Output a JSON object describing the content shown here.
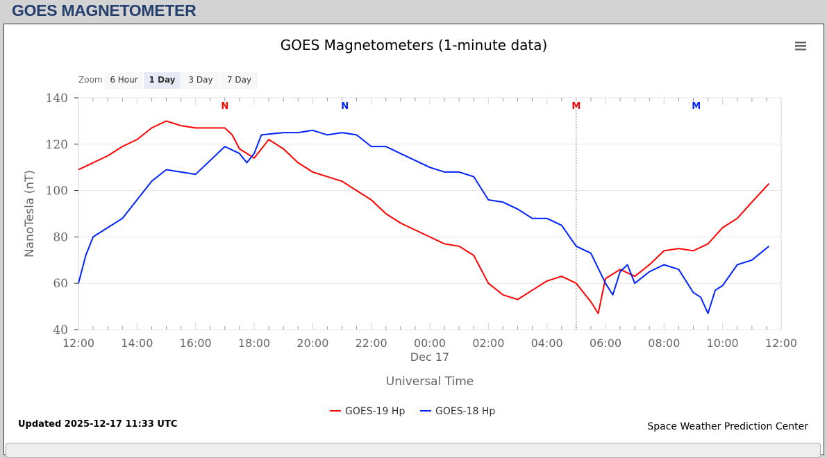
{
  "header": {
    "title": "GOES MAGNETOMETER"
  },
  "menu_icon": "hamburger-menu-icon",
  "zoom": {
    "label": "Zoom",
    "buttons": [
      "6 Hour",
      "1 Day",
      "3 Day",
      "7 Day"
    ],
    "selected": "1 Day"
  },
  "footer": {
    "updated": "Updated 2025-12-17 11:33 UTC",
    "credit": "Space Weather Prediction Center"
  },
  "chart_data": {
    "type": "line",
    "title": "GOES Magnetometers (1-minute data)",
    "xlabel": "Universal Time",
    "ylabel": "NanoTesla (nT)",
    "xlim": [
      "2025-12-16 12:00",
      "2025-12-17 12:00"
    ],
    "ylim": [
      40,
      140
    ],
    "yticks": [
      40,
      60,
      80,
      100,
      120,
      140
    ],
    "xticks": [
      "12:00",
      "14:00",
      "16:00",
      "18:00",
      "20:00",
      "22:00",
      "00:00",
      "02:00",
      "04:00",
      "06:00",
      "08:00",
      "10:00",
      "12:00"
    ],
    "date_label": "Dec 17",
    "grid": true,
    "legend_position": "bottom",
    "colors": {
      "GOES-19 Hp": "#ff0000",
      "GOES-18 Hp": "#0022ff"
    },
    "markers": [
      {
        "label": "N",
        "series": "GOES-19 Hp",
        "time": "2025-12-16 17:00"
      },
      {
        "label": "N",
        "series": "GOES-18 Hp",
        "time": "2025-12-16 21:06"
      },
      {
        "label": "M",
        "series": "GOES-19 Hp",
        "time": "2025-12-17 05:00",
        "line": true
      },
      {
        "label": "M",
        "series": "GOES-18 Hp",
        "time": "2025-12-17 09:06"
      }
    ],
    "series": [
      {
        "name": "GOES-19 Hp",
        "points": [
          [
            "2025-12-16 12:00",
            109
          ],
          [
            "2025-12-16 12:30",
            112
          ],
          [
            "2025-12-16 13:00",
            115
          ],
          [
            "2025-12-16 13:30",
            119
          ],
          [
            "2025-12-16 14:00",
            122
          ],
          [
            "2025-12-16 14:30",
            127
          ],
          [
            "2025-12-16 15:00",
            130
          ],
          [
            "2025-12-16 15:30",
            128
          ],
          [
            "2025-12-16 16:00",
            127
          ],
          [
            "2025-12-16 16:30",
            127
          ],
          [
            "2025-12-16 17:00",
            127
          ],
          [
            "2025-12-16 17:15",
            124
          ],
          [
            "2025-12-16 17:30",
            118
          ],
          [
            "2025-12-16 18:00",
            114
          ],
          [
            "2025-12-16 18:30",
            122
          ],
          [
            "2025-12-16 19:00",
            118
          ],
          [
            "2025-12-16 19:30",
            112
          ],
          [
            "2025-12-16 20:00",
            108
          ],
          [
            "2025-12-16 20:30",
            106
          ],
          [
            "2025-12-16 21:00",
            104
          ],
          [
            "2025-12-16 21:30",
            100
          ],
          [
            "2025-12-16 22:00",
            96
          ],
          [
            "2025-12-16 22:30",
            90
          ],
          [
            "2025-12-16 23:00",
            86
          ],
          [
            "2025-12-16 23:30",
            83
          ],
          [
            "2025-12-17 00:00",
            80
          ],
          [
            "2025-12-17 00:30",
            77
          ],
          [
            "2025-12-17 01:00",
            76
          ],
          [
            "2025-12-17 01:30",
            72
          ],
          [
            "2025-12-17 02:00",
            60
          ],
          [
            "2025-12-17 02:30",
            55
          ],
          [
            "2025-12-17 03:00",
            53
          ],
          [
            "2025-12-17 03:30",
            57
          ],
          [
            "2025-12-17 04:00",
            61
          ],
          [
            "2025-12-17 04:30",
            63
          ],
          [
            "2025-12-17 05:00",
            60
          ],
          [
            "2025-12-17 05:30",
            52
          ],
          [
            "2025-12-17 05:45",
            47
          ],
          [
            "2025-12-17 06:00",
            62
          ],
          [
            "2025-12-17 06:30",
            66
          ],
          [
            "2025-12-17 07:00",
            63
          ],
          [
            "2025-12-17 07:30",
            68
          ],
          [
            "2025-12-17 08:00",
            74
          ],
          [
            "2025-12-17 08:30",
            75
          ],
          [
            "2025-12-17 09:00",
            74
          ],
          [
            "2025-12-17 09:30",
            77
          ],
          [
            "2025-12-17 10:00",
            84
          ],
          [
            "2025-12-17 10:30",
            88
          ],
          [
            "2025-12-17 11:00",
            95
          ],
          [
            "2025-12-17 11:35",
            103
          ]
        ]
      },
      {
        "name": "GOES-18 Hp",
        "points": [
          [
            "2025-12-16 12:00",
            60
          ],
          [
            "2025-12-16 12:15",
            72
          ],
          [
            "2025-12-16 12:30",
            80
          ],
          [
            "2025-12-16 13:00",
            84
          ],
          [
            "2025-12-16 13:30",
            88
          ],
          [
            "2025-12-16 14:00",
            96
          ],
          [
            "2025-12-16 14:30",
            104
          ],
          [
            "2025-12-16 15:00",
            109
          ],
          [
            "2025-12-16 15:30",
            108
          ],
          [
            "2025-12-16 16:00",
            107
          ],
          [
            "2025-12-16 16:30",
            113
          ],
          [
            "2025-12-16 17:00",
            119
          ],
          [
            "2025-12-16 17:30",
            116
          ],
          [
            "2025-12-16 17:45",
            112
          ],
          [
            "2025-12-16 18:00",
            116
          ],
          [
            "2025-12-16 18:15",
            124
          ],
          [
            "2025-12-16 19:00",
            125
          ],
          [
            "2025-12-16 19:30",
            125
          ],
          [
            "2025-12-16 20:00",
            126
          ],
          [
            "2025-12-16 20:30",
            124
          ],
          [
            "2025-12-16 21:00",
            125
          ],
          [
            "2025-12-16 21:30",
            124
          ],
          [
            "2025-12-16 22:00",
            119
          ],
          [
            "2025-12-16 22:30",
            119
          ],
          [
            "2025-12-16 23:00",
            116
          ],
          [
            "2025-12-16 23:30",
            113
          ],
          [
            "2025-12-17 00:00",
            110
          ],
          [
            "2025-12-17 00:30",
            108
          ],
          [
            "2025-12-17 01:00",
            108
          ],
          [
            "2025-12-17 01:30",
            106
          ],
          [
            "2025-12-17 02:00",
            96
          ],
          [
            "2025-12-17 02:30",
            95
          ],
          [
            "2025-12-17 03:00",
            92
          ],
          [
            "2025-12-17 03:30",
            88
          ],
          [
            "2025-12-17 04:00",
            88
          ],
          [
            "2025-12-17 04:30",
            85
          ],
          [
            "2025-12-17 05:00",
            76
          ],
          [
            "2025-12-17 05:30",
            73
          ],
          [
            "2025-12-17 06:00",
            60
          ],
          [
            "2025-12-17 06:15",
            55
          ],
          [
            "2025-12-17 06:30",
            65
          ],
          [
            "2025-12-17 06:45",
            68
          ],
          [
            "2025-12-17 07:00",
            60
          ],
          [
            "2025-12-17 07:30",
            65
          ],
          [
            "2025-12-17 08:00",
            68
          ],
          [
            "2025-12-17 08:30",
            66
          ],
          [
            "2025-12-17 09:00",
            56
          ],
          [
            "2025-12-17 09:15",
            54
          ],
          [
            "2025-12-17 09:30",
            47
          ],
          [
            "2025-12-17 09:45",
            57
          ],
          [
            "2025-12-17 10:00",
            59
          ],
          [
            "2025-12-17 10:30",
            68
          ],
          [
            "2025-12-17 11:00",
            70
          ],
          [
            "2025-12-17 11:35",
            76
          ]
        ]
      }
    ]
  }
}
